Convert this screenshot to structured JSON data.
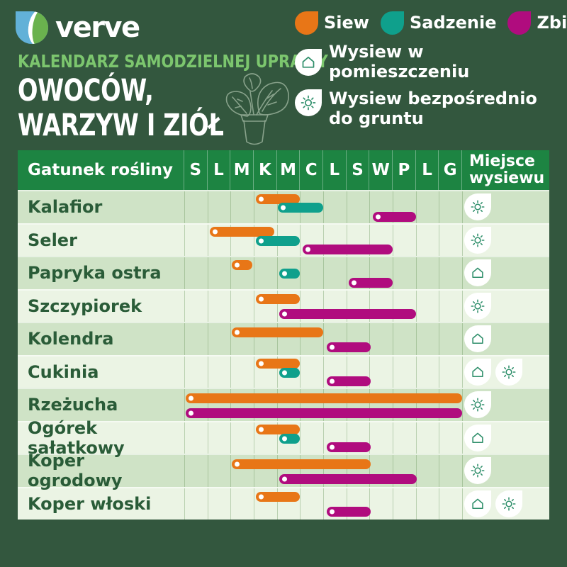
{
  "colors": {
    "background": "#33573e",
    "header_green": "#1d8442",
    "row_dark": "#cfe3c6",
    "row_light": "#ebf4e4",
    "siew": "#e87617",
    "sadzenie": "#0fa08c",
    "zbior": "#b00c7e",
    "label_text": "#2a5c38",
    "subtitle_green": "#7cc66e",
    "icon_green": "#2f8f6b",
    "logo_blue": "#62b1d8",
    "logo_green": "#6ab24e"
  },
  "brand": {
    "name": "verve"
  },
  "header": {
    "subtitle": "KALENDARZ SAMODZIELNEJ UPRAWY",
    "title_line1": "OWOCÓW,",
    "title_line2": "WARZYW I ZIÓŁ"
  },
  "legend": {
    "items": [
      {
        "label": "Siew",
        "key": "siew"
      },
      {
        "label": "Sadzenie",
        "key": "sadzenie"
      },
      {
        "label": "Zbiór",
        "key": "zbior"
      }
    ],
    "indoor_label": "Wysiew w pomieszczeniu",
    "outdoor_label_line1": "Wysiew bezpośrednio",
    "outdoor_label_line2": "do gruntu"
  },
  "table": {
    "species_header": "Gatunek rośliny",
    "months": [
      "S",
      "L",
      "M",
      "K",
      "M",
      "C",
      "L",
      "S",
      "W",
      "P",
      "L",
      "G"
    ],
    "place_header_line1": "Miejsce",
    "place_header_line2": "wysiewu"
  },
  "chart_data": {
    "type": "gantt",
    "title": "Kalendarz samodzielnej uprawy owoców, warzyw i ziół",
    "x_axis": "miesiące stycznia–grudnia (S L M K M C L S W P L G)",
    "x_unit": "month index, 0 = początek stycznia, 12 = koniec grudnia",
    "legend": [
      "Siew",
      "Sadzenie",
      "Zbiór"
    ],
    "place_icons_meaning": {
      "house": "Wysiew w pomieszczeniu",
      "sun": "Wysiew bezpośrednio do gruntu"
    },
    "rows": [
      {
        "name": "Kalafior",
        "bars": [
          {
            "type": "siew",
            "start": 3.1,
            "end": 5
          },
          {
            "type": "sadzenie",
            "start": 4.05,
            "end": 6
          },
          {
            "type": "zbior",
            "start": 8.15,
            "end": 10
          }
        ],
        "miejsce_wysiewu": [
          "sun"
        ]
      },
      {
        "name": "Seler",
        "bars": [
          {
            "type": "siew",
            "start": 1.1,
            "end": 3.9
          },
          {
            "type": "sadzenie",
            "start": 3.1,
            "end": 5
          },
          {
            "type": "zbior",
            "start": 5.1,
            "end": 9
          }
        ],
        "miejsce_wysiewu": [
          "sun"
        ]
      },
      {
        "name": "Papryka ostra",
        "bars": [
          {
            "type": "siew",
            "start": 2.05,
            "end": 2.95
          },
          {
            "type": "sadzenie",
            "start": 4.1,
            "end": 5
          },
          {
            "type": "zbior",
            "start": 7.1,
            "end": 9
          }
        ],
        "miejsce_wysiewu": [
          "house"
        ]
      },
      {
        "name": "Szczypiorek",
        "bars": [
          {
            "type": "siew",
            "start": 3.1,
            "end": 5
          },
          {
            "type": "zbior",
            "start": 4.1,
            "end": 10
          }
        ],
        "miejsce_wysiewu": [
          "sun"
        ]
      },
      {
        "name": "Kolendra",
        "bars": [
          {
            "type": "siew",
            "start": 2.05,
            "end": 6
          },
          {
            "type": "zbior",
            "start": 6.15,
            "end": 8.05
          }
        ],
        "miejsce_wysiewu": [
          "house"
        ]
      },
      {
        "name": "Cukinia",
        "bars": [
          {
            "type": "siew",
            "start": 3.1,
            "end": 5
          },
          {
            "type": "sadzenie",
            "start": 4.1,
            "end": 5
          },
          {
            "type": "zbior",
            "start": 6.15,
            "end": 8.05
          }
        ],
        "miejsce_wysiewu": [
          "house",
          "sun"
        ]
      },
      {
        "name": "Rzeżucha",
        "bars": [
          {
            "type": "siew",
            "start": 0.05,
            "end": 12
          },
          {
            "type": "zbior",
            "start": 0.05,
            "end": 12
          }
        ],
        "miejsce_wysiewu": [
          "sun"
        ]
      },
      {
        "name": "Ogórek sałatkowy",
        "bars": [
          {
            "type": "siew",
            "start": 3.1,
            "end": 5
          },
          {
            "type": "sadzenie",
            "start": 4.1,
            "end": 5
          },
          {
            "type": "zbior",
            "start": 6.15,
            "end": 8.05
          }
        ],
        "miejsce_wysiewu": [
          "house"
        ]
      },
      {
        "name": "Koper ogrodowy",
        "bars": [
          {
            "type": "siew",
            "start": 2.05,
            "end": 8.05
          },
          {
            "type": "zbior",
            "start": 4.1,
            "end": 10.05
          }
        ],
        "miejsce_wysiewu": [
          "sun"
        ]
      },
      {
        "name": "Koper włoski",
        "bars": [
          {
            "type": "siew",
            "start": 3.1,
            "end": 5
          },
          {
            "type": "zbior",
            "start": 6.15,
            "end": 8.05
          }
        ],
        "miejsce_wysiewu": [
          "house",
          "sun"
        ]
      }
    ]
  }
}
